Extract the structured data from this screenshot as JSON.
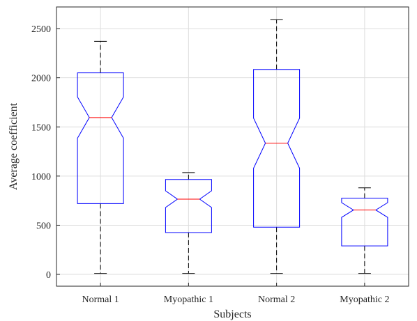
{
  "chart_data": {
    "type": "boxplot",
    "notched": true,
    "title": "",
    "xlabel": "Subjects",
    "ylabel": "Average coefficient",
    "ylim": [
      -120,
      2720
    ],
    "yticks": [
      0,
      500,
      1000,
      1500,
      2000,
      2500
    ],
    "grid": true,
    "categories": [
      "Normal 1",
      "Myopathic 1",
      "Normal 2",
      "Myopathic 2"
    ],
    "boxes": [
      {
        "name": "Normal 1",
        "whisker_low": 10,
        "q1": 720,
        "median": 1595,
        "q3": 2050,
        "whisker_high": 2370,
        "notch_low": 1385,
        "notch_high": 1805
      },
      {
        "name": "Myopathic 1",
        "whisker_low": 10,
        "q1": 425,
        "median": 765,
        "q3": 965,
        "whisker_high": 1035,
        "notch_low": 680,
        "notch_high": 850
      },
      {
        "name": "Normal 2",
        "whisker_low": 10,
        "q1": 480,
        "median": 1335,
        "q3": 2085,
        "whisker_high": 2590,
        "notch_low": 1080,
        "notch_high": 1590
      },
      {
        "name": "Myopathic 2",
        "whisker_low": 10,
        "q1": 290,
        "median": 655,
        "q3": 775,
        "whisker_high": 880,
        "notch_low": 580,
        "notch_high": 730
      }
    ],
    "colors": {
      "box": "#0000ff",
      "median": "#ff0000",
      "whisker": "#000000",
      "grid": "#dddddd",
      "axis": "#262626"
    }
  }
}
